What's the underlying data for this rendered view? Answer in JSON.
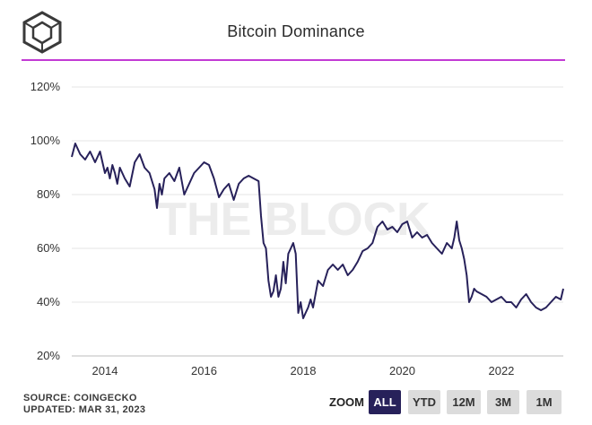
{
  "header": {
    "title": "Bitcoin Dominance"
  },
  "footer": {
    "source": "SOURCE: COINGECKO",
    "updated": "UPDATED: MAR 31, 2023"
  },
  "watermark": "THE BLOCK",
  "zoom": {
    "label": "ZOOM",
    "buttons": [
      "ALL",
      "YTD",
      "12M",
      "3M",
      "1M"
    ],
    "active": "ALL"
  },
  "colors": {
    "line": "#27215a",
    "accent": "#c23bd4",
    "grid": "#e6e6e6",
    "watermark": "#ececec"
  },
  "chart_data": {
    "type": "line",
    "title": "Bitcoin Dominance",
    "xlabel": "",
    "ylabel": "",
    "ylim": [
      20,
      120
    ],
    "y_ticks": [
      "20%",
      "40%",
      "60%",
      "80%",
      "100%",
      "120%"
    ],
    "x_ticks": [
      "2014",
      "2016",
      "2018",
      "2020",
      "2022"
    ],
    "xlim": [
      2013.33,
      2023.25
    ],
    "grid": true,
    "series": [
      {
        "x": [
          2013.33,
          2013.4,
          2013.5,
          2013.6,
          2013.7,
          2013.8,
          2013.9,
          2014.0,
          2014.05,
          2014.1,
          2014.15,
          2014.2,
          2014.25,
          2014.3,
          2014.4,
          2014.5,
          2014.6,
          2014.7,
          2014.8,
          2014.9,
          2015.0,
          2015.05,
          2015.1,
          2015.15,
          2015.2,
          2015.3,
          2015.4,
          2015.5,
          2015.6,
          2015.7,
          2015.8,
          2015.9,
          2016.0,
          2016.1,
          2016.2,
          2016.3,
          2016.4,
          2016.5,
          2016.6,
          2016.7,
          2016.8,
          2016.9,
          2017.0,
          2017.1,
          2017.15,
          2017.2,
          2017.25,
          2017.3,
          2017.35,
          2017.4,
          2017.45,
          2017.5,
          2017.55,
          2017.6,
          2017.65,
          2017.7,
          2017.75,
          2017.8,
          2017.85,
          2017.9,
          2017.95,
          2018.0,
          2018.05,
          2018.1,
          2018.15,
          2018.2,
          2018.3,
          2018.4,
          2018.5,
          2018.6,
          2018.7,
          2018.8,
          2018.9,
          2019.0,
          2019.1,
          2019.2,
          2019.3,
          2019.4,
          2019.5,
          2019.6,
          2019.7,
          2019.8,
          2019.9,
          2020.0,
          2020.1,
          2020.2,
          2020.3,
          2020.4,
          2020.5,
          2020.6,
          2020.7,
          2020.8,
          2020.9,
          2021.0,
          2021.05,
          2021.1,
          2021.15,
          2021.2,
          2021.25,
          2021.3,
          2021.35,
          2021.4,
          2021.45,
          2021.5,
          2021.6,
          2021.7,
          2021.8,
          2021.9,
          2022.0,
          2022.1,
          2022.2,
          2022.3,
          2022.4,
          2022.5,
          2022.6,
          2022.7,
          2022.8,
          2022.9,
          2023.0,
          2023.1,
          2023.2,
          2023.25
        ],
        "values": [
          94,
          99,
          95,
          93,
          96,
          92,
          96,
          88,
          90,
          86,
          91,
          88,
          84,
          90,
          86,
          83,
          92,
          95,
          90,
          88,
          82,
          75,
          84,
          80,
          86,
          88,
          85,
          90,
          80,
          84,
          88,
          90,
          92,
          91,
          86,
          79,
          82,
          84,
          78,
          84,
          86,
          87,
          86,
          85,
          72,
          62,
          60,
          48,
          42,
          44,
          50,
          42,
          45,
          55,
          47,
          58,
          60,
          62,
          58,
          36,
          40,
          34,
          36,
          38,
          41,
          38,
          48,
          46,
          52,
          54,
          52,
          54,
          50,
          52,
          55,
          59,
          60,
          62,
          68,
          70,
          67,
          68,
          66,
          69,
          70,
          64,
          66,
          64,
          65,
          62,
          60,
          58,
          62,
          60,
          64,
          70,
          63,
          60,
          56,
          50,
          40,
          42,
          45,
          44,
          43,
          42,
          40,
          41,
          42,
          40,
          40,
          38,
          41,
          43,
          40,
          38,
          37,
          38,
          40,
          42,
          41,
          45
        ]
      }
    ]
  }
}
